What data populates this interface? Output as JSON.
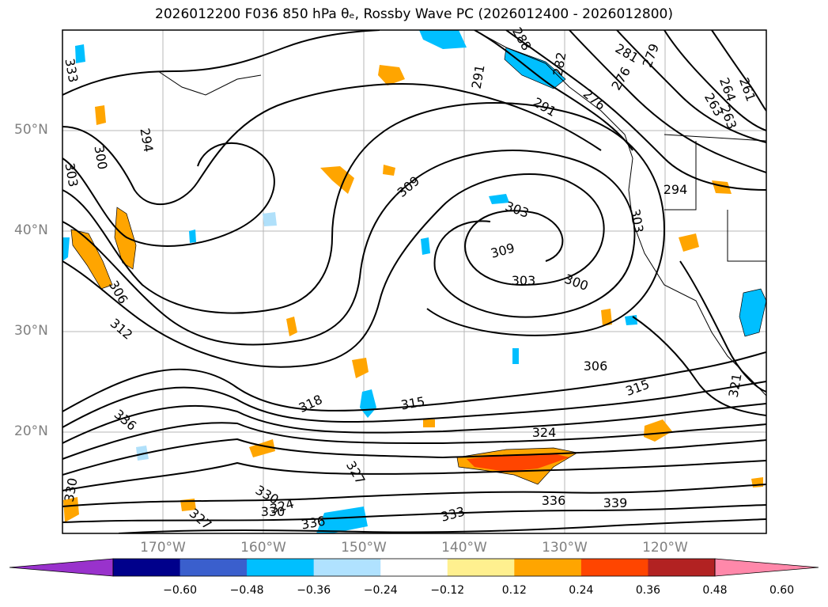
{
  "title": "2026012200 F036 850 hPa θₑ, Rossby Wave PC (2026012400 - 2026012800)",
  "map": {
    "lat_labels": [
      "50°N",
      "40°N",
      "30°N",
      "20°N"
    ],
    "lon_labels": [
      "170°W",
      "160°W",
      "150°W",
      "140°W",
      "130°W",
      "120°W"
    ],
    "contour_labels": [
      "291",
      "288",
      "282",
      "281",
      "279",
      "276",
      "261",
      "264",
      "263",
      "263",
      "276",
      "291",
      "294",
      "300",
      "303",
      "294",
      "309",
      "303",
      "303",
      "309",
      "303",
      "300",
      "306",
      "312",
      "306",
      "318",
      "315",
      "315",
      "324",
      "321",
      "327",
      "333",
      "336",
      "336",
      "330",
      "327",
      "324",
      "330",
      "330",
      "336",
      "339",
      "333"
    ],
    "shading_colors": {
      "positive_low": "#fde98b",
      "positive_mid": "#ffa500",
      "positive_high": "#ff4500",
      "negative_low": "#b0e0fa",
      "negative_mid": "#00bfff"
    }
  },
  "colorbar": {
    "ticks": [
      "−0.60",
      "−0.48",
      "−0.36",
      "−0.24",
      "−0.12",
      "0.12",
      "0.24",
      "0.36",
      "0.48",
      "0.60"
    ],
    "colors": [
      "#9932cc",
      "#00008b",
      "#3a5fcd",
      "#00bfff",
      "#b0e2ff",
      "#ffffff",
      "#fff08f",
      "#ffa500",
      "#ff4500",
      "#b22222",
      "#ff88aa"
    ]
  }
}
